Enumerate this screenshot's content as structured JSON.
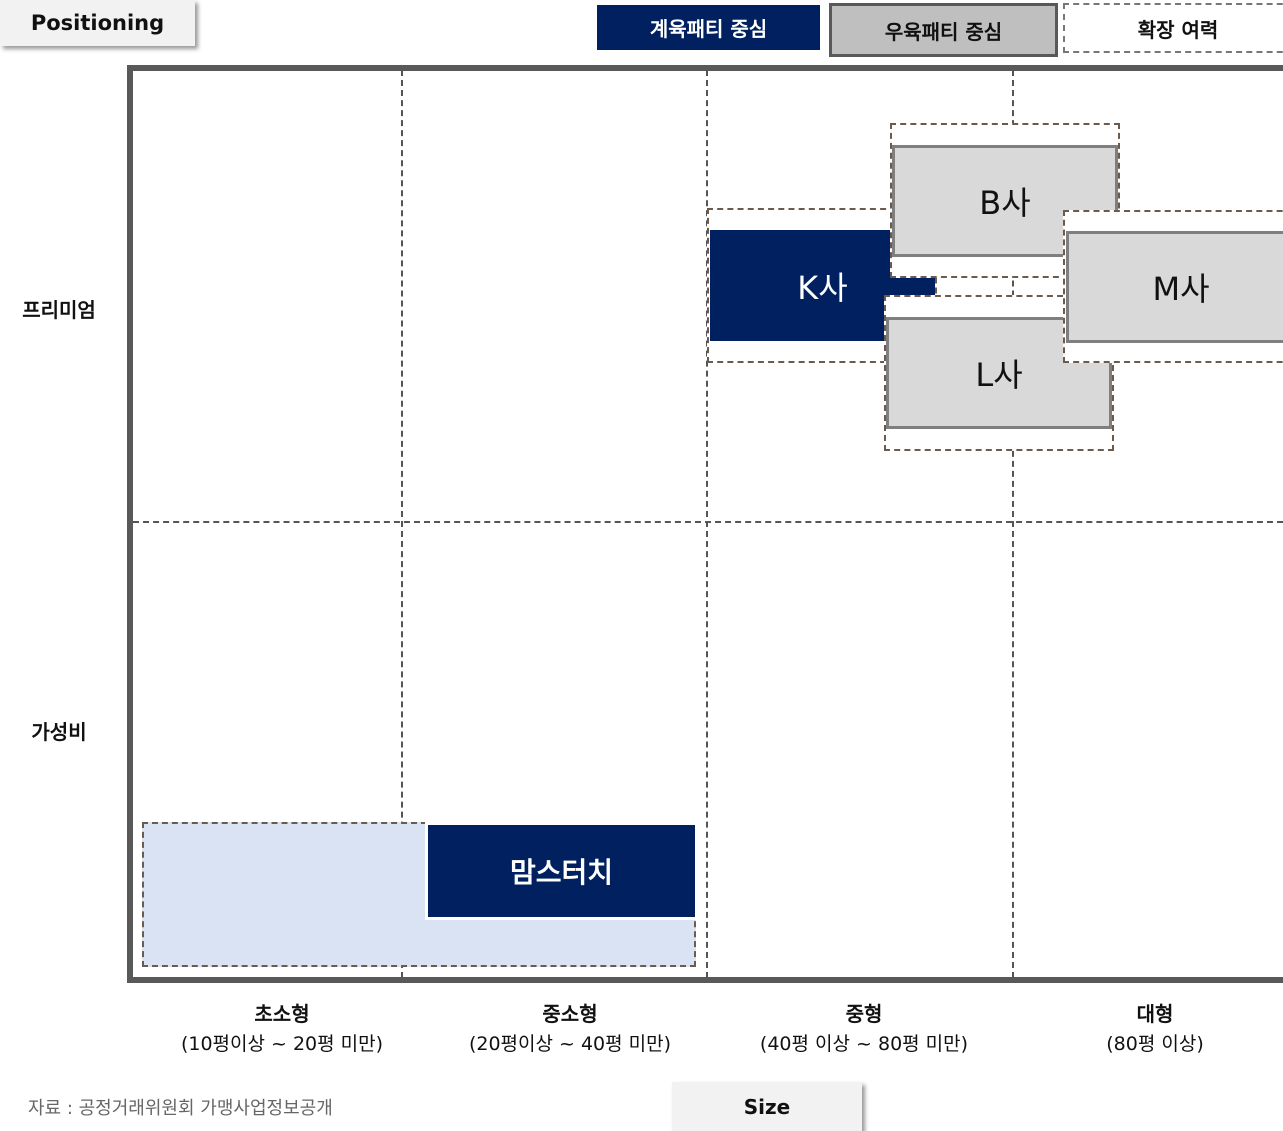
{
  "header": {
    "title": "Positioning"
  },
  "legend": [
    "계육패티 중심",
    "우육패티 중심",
    "확장 여력"
  ],
  "y_labels": [
    "프리미엄",
    "가성비"
  ],
  "x_labels": [
    {
      "name": "초소형",
      "range": "(10평이상 ~ 20평 미만)"
    },
    {
      "name": "중소형",
      "range": "(20평이상 ~ 40평 미만)"
    },
    {
      "name": "중형",
      "range": "(40평 이상 ~ 80평 미만)"
    },
    {
      "name": "대형",
      "range": "(80평 이상)"
    }
  ],
  "nodes": [
    {
      "label": "B사"
    },
    {
      "label": "K사"
    },
    {
      "label": "M사"
    },
    {
      "label": "L사"
    },
    {
      "label": "맘스터치"
    }
  ],
  "axis_title": "Size",
  "source": "자료 : 공정거래위원회 가맹사업정보공개"
}
